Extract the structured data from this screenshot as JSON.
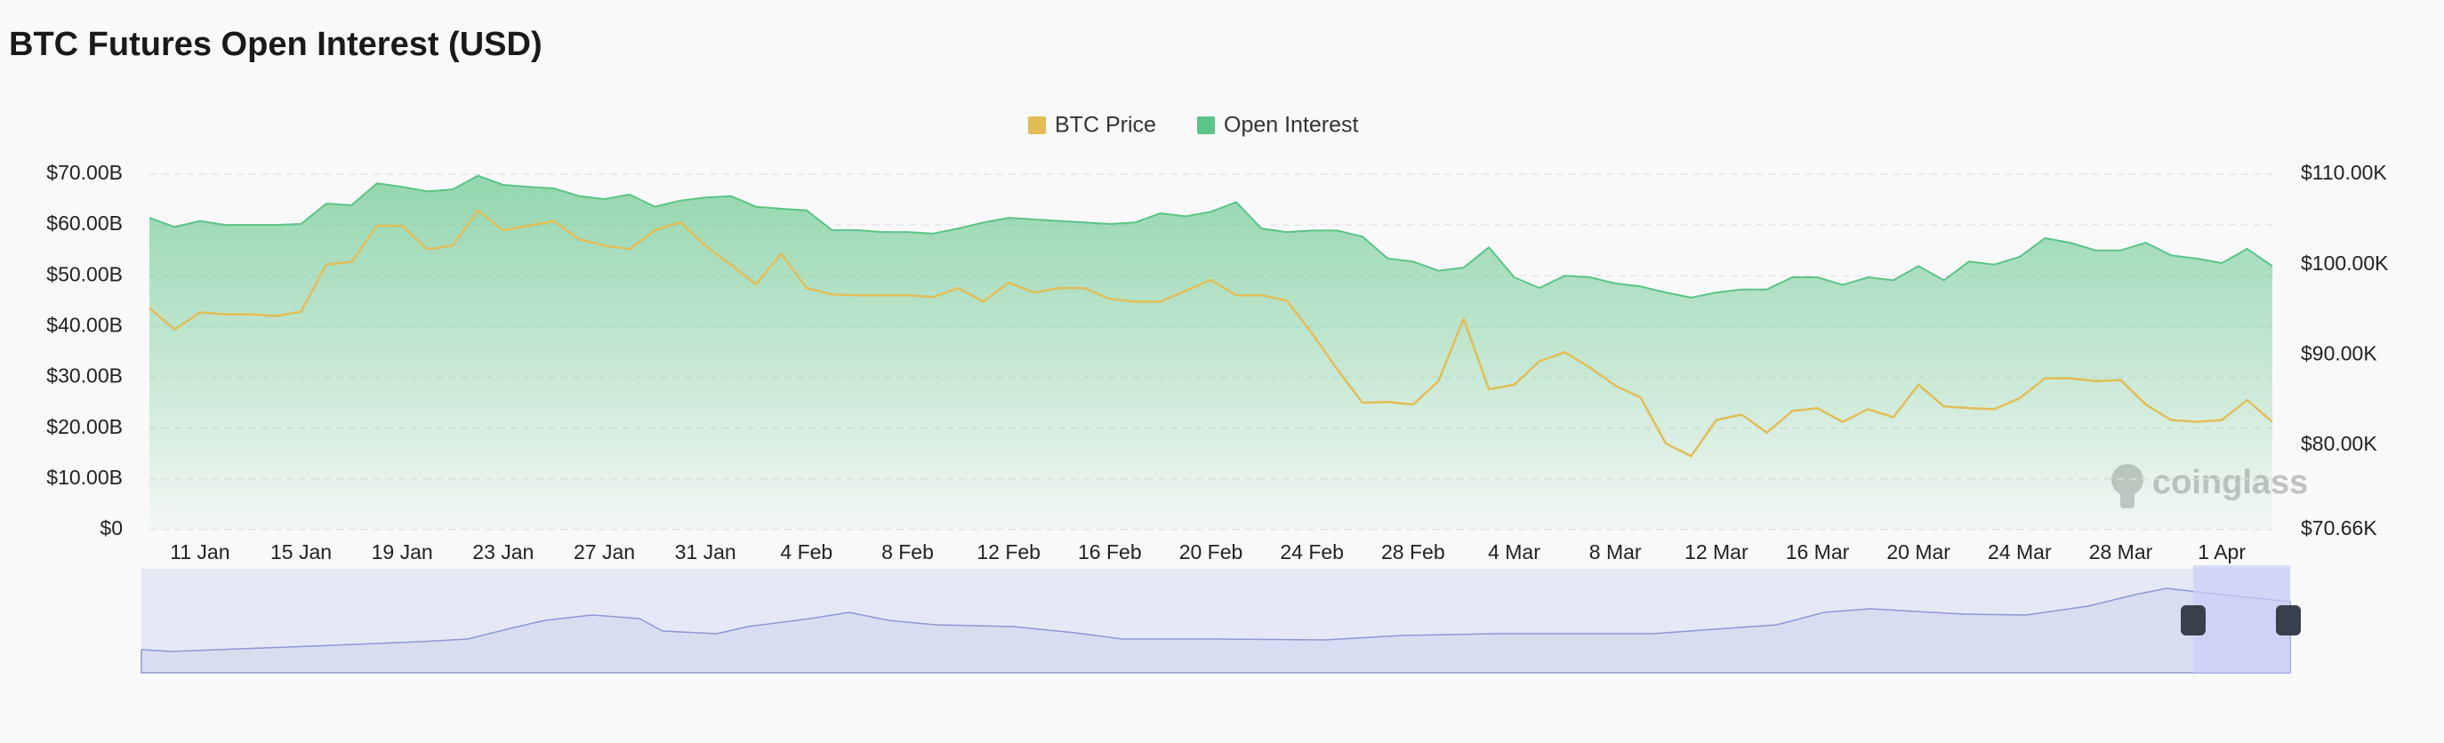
{
  "chart_data": {
    "type": "line",
    "title": "BTC Futures Open Interest (USD)",
    "watermark": "coinglass",
    "legend": "top",
    "grid": true,
    "categories": [
      null,
      null,
      "11 Jan",
      null,
      null,
      null,
      "15 Jan",
      null,
      null,
      null,
      "19 Jan",
      null,
      null,
      null,
      "23 Jan",
      null,
      null,
      null,
      "27 Jan",
      null,
      null,
      null,
      "31 Jan",
      null,
      null,
      null,
      "4 Feb",
      null,
      null,
      null,
      "8 Feb",
      null,
      null,
      null,
      "12 Feb",
      null,
      null,
      null,
      "16 Feb",
      null,
      null,
      null,
      "20 Feb",
      null,
      null,
      null,
      "24 Feb",
      null,
      null,
      null,
      "28 Feb",
      null,
      null,
      null,
      "4 Mar",
      null,
      null,
      null,
      "8 Mar",
      null,
      null,
      null,
      "12 Mar",
      null,
      null,
      null,
      "16 Mar",
      null,
      null,
      null,
      "20 Mar",
      null,
      null,
      null,
      "24 Mar",
      null,
      null,
      null,
      "28 Mar",
      null,
      null,
      null,
      "1 Apr",
      null,
      null
    ],
    "series": [
      {
        "name": "BTC Price",
        "color": "#e2bd57",
        "axis": "y2",
        "values": [
          95.2,
          92.8,
          94.7,
          94.5,
          94.5,
          94.3,
          94.8,
          100,
          100.3,
          104.3,
          104.3,
          101.7,
          102.1,
          106,
          103.8,
          104.3,
          104.8,
          102.8,
          102.1,
          101.7,
          103.8,
          104.7,
          102.1,
          100,
          97.8,
          101.2,
          97.4,
          96.7,
          96.6,
          96.6,
          96.6,
          96.4,
          97.4,
          95.9,
          98,
          96.9,
          97.4,
          97.4,
          96.2,
          95.9,
          95.9,
          97.1,
          98.3,
          96.6,
          96.6,
          96,
          92.4,
          88.4,
          84.7,
          84.8,
          84.5,
          87.1,
          94,
          86.2,
          86.7,
          89.3,
          90.3,
          88.6,
          86.6,
          85.3,
          80.2,
          78.8,
          82.8,
          83.4,
          81.4,
          83.8,
          84.1,
          82.6,
          84,
          83.1,
          86.7,
          84.3,
          84.1,
          84,
          85.2,
          87.4,
          87.4,
          87.1,
          87.2,
          84.5,
          82.8,
          82.6,
          82.8,
          85,
          82.6
        ]
      },
      {
        "name": "Open Interest",
        "color": "#5cc486",
        "area": true,
        "values": [
          61.4,
          59.6,
          60.8,
          60,
          60,
          60,
          60.2,
          64.2,
          63.9,
          68.2,
          67.5,
          66.6,
          67,
          69.7,
          67.9,
          67.5,
          67.2,
          65.7,
          65.1,
          66,
          63.6,
          64.8,
          65.4,
          65.7,
          63.6,
          63.2,
          62.9,
          59,
          59,
          58.6,
          58.6,
          58.3,
          59.3,
          60.5,
          61.4,
          61.1,
          60.8,
          60.5,
          60.2,
          60.5,
          62.3,
          61.7,
          62.6,
          64.5,
          59.3,
          58.6,
          58.9,
          58.9,
          57.7,
          53.4,
          52.8,
          51,
          51.6,
          55.6,
          49.7,
          47.6,
          50,
          49.7,
          48.5,
          47.9,
          46.7,
          45.7,
          46.7,
          47.3,
          47.3,
          49.7,
          49.7,
          48.2,
          49.7,
          49.1,
          51.9,
          49.1,
          52.8,
          52.2,
          53.7,
          57.4,
          56.5,
          55,
          55,
          56.5,
          54,
          53.4,
          52.5,
          55.3,
          51.9
        ]
      }
    ],
    "ylim": [
      0,
      70
    ],
    "yticks": [
      {
        "value": 0,
        "label": "$0"
      },
      {
        "value": 10,
        "label": "$10.00B"
      },
      {
        "value": 20,
        "label": "$20.00B"
      },
      {
        "value": 30,
        "label": "$30.00B"
      },
      {
        "value": 40,
        "label": "$40.00B"
      },
      {
        "value": 50,
        "label": "$50.00B"
      },
      {
        "value": 60,
        "label": "$60.00B"
      },
      {
        "value": 70,
        "label": "$70.00B"
      }
    ],
    "y2lim": [
      70.66,
      110
    ],
    "y2ticks": [
      {
        "value": 70.66,
        "label": "$70.66K"
      },
      {
        "value": 80,
        "label": "$80.00K"
      },
      {
        "value": 90,
        "label": "$90.00K"
      },
      {
        "value": 100,
        "label": "$100.00K"
      },
      {
        "value": 110,
        "label": "$110.00K"
      }
    ]
  }
}
